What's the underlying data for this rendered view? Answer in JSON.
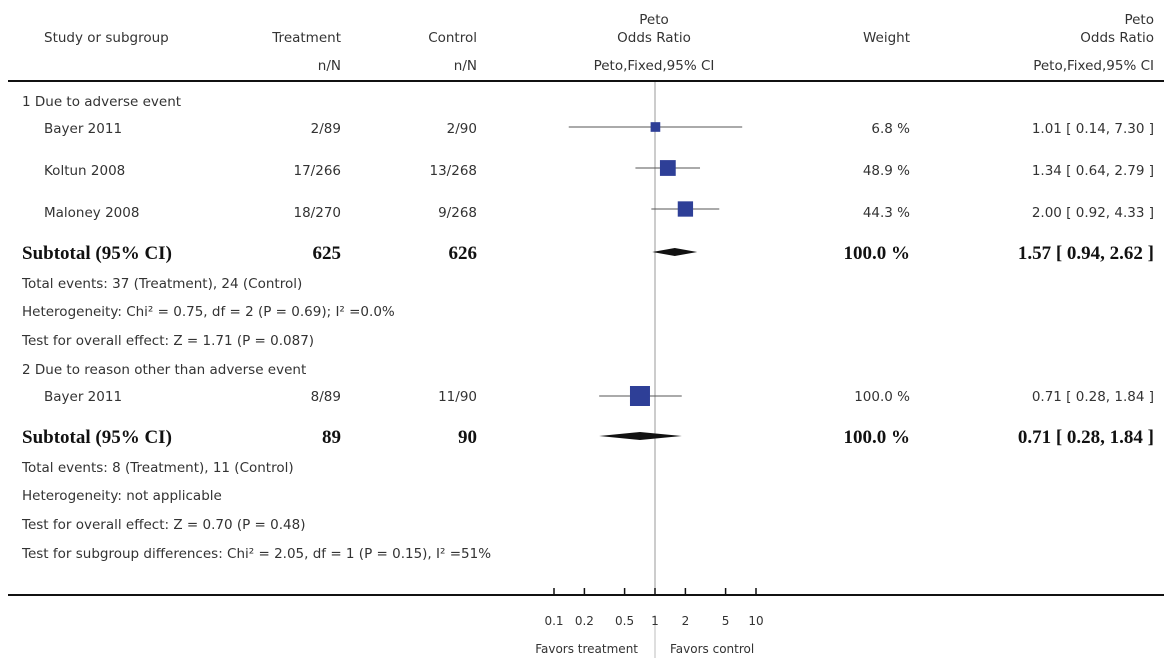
{
  "header": {
    "study": "Study or subgroup",
    "treatment": "Treatment",
    "control": "Control",
    "or_top": "Peto",
    "or_bottom": "Odds Ratio",
    "weight": "Weight",
    "or2_top": "Peto",
    "or2_bottom": "Odds Ratio",
    "sub_treatment": "n/N",
    "sub_control": "n/N",
    "sub_or": "Peto,Fixed,95% CI",
    "sub_or2": "Peto,Fixed,95% CI"
  },
  "groups": [
    {
      "title": "1 Due to adverse event",
      "studies": [
        {
          "name": "Bayer 2011",
          "treatment": "2/89",
          "control": "2/90",
          "weight": "6.8 %",
          "ci_text": "1.01 [ 0.14, 7.30 ]"
        },
        {
          "name": "Koltun 2008",
          "treatment": "17/266",
          "control": "13/268",
          "weight": "48.9 %",
          "ci_text": "1.34 [ 0.64, 2.79 ]"
        },
        {
          "name": "Maloney 2008",
          "treatment": "18/270",
          "control": "9/268",
          "weight": "44.3 %",
          "ci_text": "2.00 [ 0.92, 4.33 ]"
        }
      ],
      "subtotal": {
        "label": "Subtotal (95% CI)",
        "treatment": "625",
        "control": "626",
        "weight": "100.0 %",
        "ci_text": "1.57 [ 0.94, 2.62 ]"
      },
      "notes": [
        "Total events: 37 (Treatment), 24 (Control)",
        "Heterogeneity: Chi² = 0.75, df = 2 (P = 0.69); I² =0.0%",
        "Test for overall effect: Z = 1.71 (P = 0.087)"
      ]
    },
    {
      "title": "2 Due to reason other than adverse event",
      "studies": [
        {
          "name": "Bayer 2011",
          "treatment": "8/89",
          "control": "11/90",
          "weight": "100.0 %",
          "ci_text": "0.71 [ 0.28, 1.84 ]"
        }
      ],
      "subtotal": {
        "label": "Subtotal (95% CI)",
        "treatment": "89",
        "control": "90",
        "weight": "100.0 %",
        "ci_text": "0.71 [ 0.28, 1.84 ]"
      },
      "notes": [
        "Total events: 8 (Treatment), 11 (Control)",
        "Heterogeneity: not applicable",
        "Test for overall effect: Z = 0.70 (P = 0.48)"
      ]
    }
  ],
  "footer_note": "Test for subgroup differences: Chi² = 2.05, df = 1 (P = 0.15), I² =51%",
  "axis": {
    "ticks": [
      "0.1",
      "0.2",
      "0.5",
      "1",
      "2",
      "5",
      "10"
    ],
    "favors_left": "Favors treatment",
    "favors_right": "Favors control"
  },
  "colors": {
    "marker": "#2e3f97",
    "diamond": "#111111",
    "line": "#555555"
  },
  "chart_data": {
    "type": "forest",
    "scale": "log",
    "xlim": [
      0.1,
      10
    ],
    "reference_line": 1,
    "series": [
      {
        "name": "Bayer 2011",
        "group": 1,
        "or": 1.01,
        "lower": 0.14,
        "upper": 7.3,
        "weight": 6.8
      },
      {
        "name": "Koltun 2008",
        "group": 1,
        "or": 1.34,
        "lower": 0.64,
        "upper": 2.79,
        "weight": 48.9
      },
      {
        "name": "Maloney 2008",
        "group": 1,
        "or": 2.0,
        "lower": 0.92,
        "upper": 4.33,
        "weight": 44.3
      },
      {
        "name": "Bayer 2011",
        "group": 2,
        "or": 0.71,
        "lower": 0.28,
        "upper": 1.84,
        "weight": 100.0
      }
    ],
    "subtotals": [
      {
        "group": 1,
        "or": 1.57,
        "lower": 0.94,
        "upper": 2.62
      },
      {
        "group": 2,
        "or": 0.71,
        "lower": 0.28,
        "upper": 1.84
      }
    ]
  }
}
